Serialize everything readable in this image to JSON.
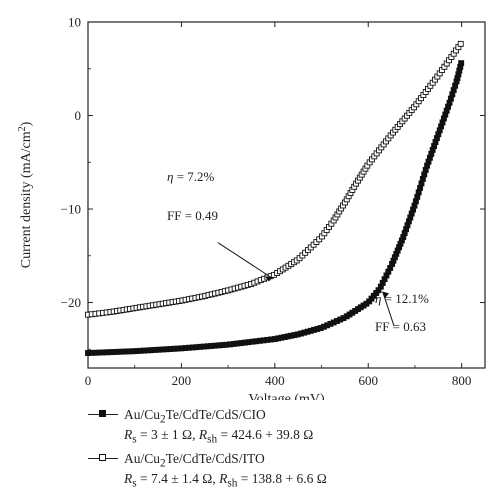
{
  "chart_data": {
    "type": "scatter",
    "xlabel": "Voltage (mV)",
    "ylabel": "Current density (mA/cm²)",
    "xlim": [
      0,
      850
    ],
    "ylim": [
      -27,
      10
    ],
    "xticks": [
      "0",
      "200",
      "400",
      "600",
      "800"
    ],
    "yticks": [
      "10",
      "0",
      "−10",
      "−20"
    ],
    "xtick_values": [
      0,
      200,
      400,
      600,
      800
    ],
    "ytick_values": [
      10,
      0,
      -10,
      -20
    ],
    "grid": false,
    "legend_position": "below",
    "series": [
      {
        "name": "Au/Cu₂Te/CdTe/CdS/CIO",
        "marker": "filled-square",
        "x": [
          0,
          100,
          200,
          300,
          400,
          450,
          500,
          550,
          600,
          625,
          650,
          675,
          700,
          725,
          750,
          775,
          790,
          800
        ],
        "y": [
          -25.4,
          -25.2,
          -24.9,
          -24.5,
          -23.9,
          -23.4,
          -22.7,
          -21.6,
          -20.0,
          -18.5,
          -16.0,
          -13.0,
          -9.5,
          -5.5,
          -2.0,
          1.5,
          3.8,
          5.8
        ]
      },
      {
        "name": "Au/Cu₂Te/CdTe/CdS/ITO",
        "marker": "open-square",
        "x": [
          0,
          50,
          100,
          150,
          200,
          250,
          300,
          350,
          400,
          450,
          500,
          525,
          550,
          575,
          600,
          650,
          700,
          750,
          800
        ],
        "y": [
          -21.3,
          -21.0,
          -20.6,
          -20.2,
          -19.8,
          -19.3,
          -18.7,
          -18.0,
          -17.0,
          -15.4,
          -13.0,
          -11.3,
          -9.3,
          -7.2,
          -5.2,
          -2.0,
          1.0,
          4.3,
          7.8
        ]
      }
    ],
    "annotations": [
      {
        "eta_symbol": "η",
        "eta_text": " = 7.2%",
        "ff_text": "FF = 0.49",
        "x": 400,
        "y": -17.2
      },
      {
        "eta_symbol": "η",
        "eta_text": " = 12.1%",
        "ff_text": "FF = 0.63",
        "x": 625,
        "y": -18.7
      }
    ],
    "legend": [
      {
        "line1_pre": "Au/Cu",
        "line1_sub": "2",
        "line1_post": "Te/CdTe/CdS/CIO",
        "line2": [
          "R",
          "s",
          " = 3 ± 1 Ω, ",
          "R",
          "sh",
          " = 424.6 + 39.8 Ω"
        ]
      },
      {
        "line1_pre": "Au/Cu",
        "line1_sub": "2",
        "line1_post": "Te/CdTe/CdS/ITO",
        "line2": [
          "R",
          "s",
          " = 7.4 ± 1.4 Ω, ",
          "R",
          "sh",
          " = 138.8 + 6.6 Ω"
        ]
      }
    ]
  }
}
